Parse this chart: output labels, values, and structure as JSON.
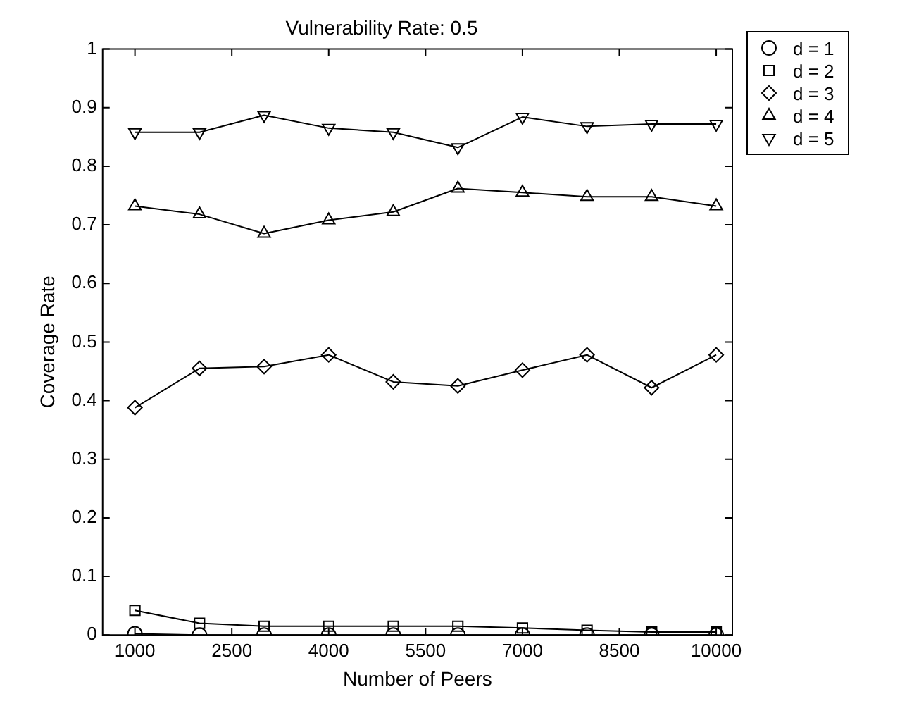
{
  "chart_data": {
    "type": "line",
    "title": "Vulnerability Rate: 0.5",
    "xlabel": "Number of Peers",
    "ylabel": "Coverage Rate",
    "x": [
      1000,
      2000,
      3000,
      4000,
      5000,
      6000,
      7000,
      8000,
      9000,
      10000
    ],
    "xlim": [
      500,
      10250
    ],
    "xticks": [
      1000,
      2500,
      4000,
      5500,
      7000,
      8500,
      10000
    ],
    "ylim": [
      0,
      1
    ],
    "yticks": [
      0,
      0.1,
      0.2,
      0.3,
      0.4,
      0.5,
      0.6,
      0.7,
      0.8,
      0.9,
      1
    ],
    "grid": false,
    "legend": "top right",
    "line_style": "solid",
    "series": [
      {
        "name": "d = 1",
        "color": "#000000",
        "marker": "circle",
        "values": [
          0.002,
          0,
          0,
          0,
          0,
          0,
          0,
          0,
          0,
          0
        ]
      },
      {
        "name": "d = 2",
        "color": "#000000",
        "marker": "square",
        "values": [
          0.042,
          0.02,
          0.015,
          0.015,
          0.015,
          0.015,
          0.012,
          0.008,
          0.005,
          0.005
        ]
      },
      {
        "name": "d = 3",
        "color": "#000000",
        "marker": "diamond",
        "values": [
          0.388,
          0.455,
          0.458,
          0.478,
          0.432,
          0.425,
          0.452,
          0.478,
          0.422,
          0.478
        ]
      },
      {
        "name": "d = 4",
        "color": "#000000",
        "marker": "triangle",
        "values": [
          0.732,
          0.718,
          0.685,
          0.708,
          0.722,
          0.762,
          0.755,
          0.748,
          0.748,
          0.732
        ]
      },
      {
        "name": "d = 5",
        "color": "#000000",
        "marker": "triangle-down",
        "values": [
          0.858,
          0.858,
          0.887,
          0.865,
          0.858,
          0.832,
          0.884,
          0.868,
          0.872,
          0.872
        ]
      }
    ]
  }
}
